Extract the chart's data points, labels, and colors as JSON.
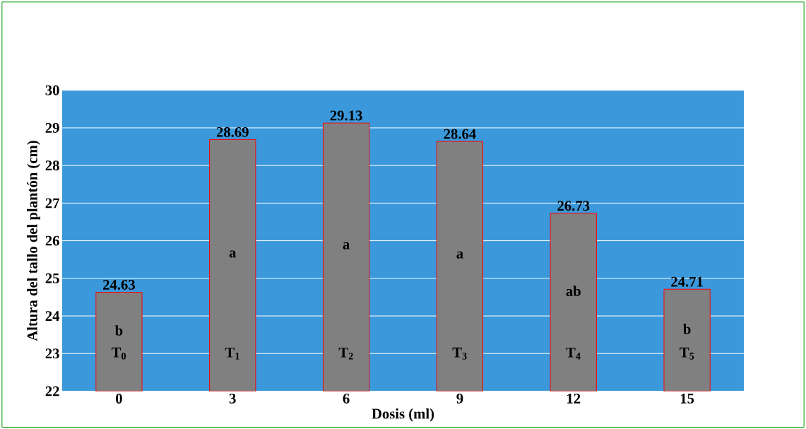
{
  "chart_data": {
    "type": "bar",
    "xlabel": "Dosis (ml)",
    "ylabel": "Altura del tallo del plantón (cm)",
    "categories": [
      "0",
      "3",
      "6",
      "9",
      "12",
      "15"
    ],
    "values": [
      24.63,
      28.69,
      29.13,
      28.64,
      26.73,
      24.71
    ],
    "color": "#808080",
    "ylim": [
      22,
      30
    ],
    "yticks": [
      22,
      23,
      24,
      25,
      26,
      27,
      28,
      29,
      30
    ],
    "grid": "y",
    "data_labels": true,
    "annotations": [
      "b",
      "a",
      "a",
      "a",
      "ab",
      "b",
      "T$_{0}$",
      "T$_{1}$",
      "T$_{2}$",
      "T$_{3}$",
      "T$_{4}$",
      "T$_{5}$"
    ]
  }
}
